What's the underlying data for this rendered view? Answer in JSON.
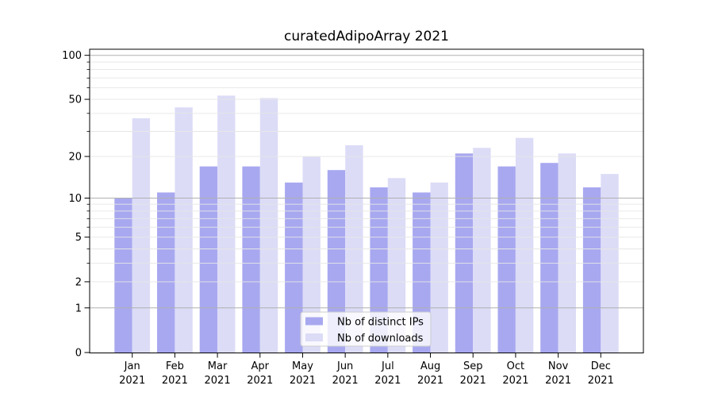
{
  "figure": {
    "background": "#ffffff"
  },
  "chart_data": {
    "type": "bar",
    "title": "curatedAdipoArray 2021",
    "categories": [
      "Jan",
      "Feb",
      "Mar",
      "Apr",
      "May",
      "Jun",
      "Jul",
      "Aug",
      "Sep",
      "Oct",
      "Nov",
      "Dec"
    ],
    "category_year": "2021",
    "series": [
      {
        "name": "Nb of distinct IPs",
        "color": "#a8a8f0",
        "values": [
          10,
          11,
          17,
          17,
          13,
          16,
          12,
          11,
          21,
          17,
          18,
          12
        ]
      },
      {
        "name": "Nb of downloads",
        "color": "#dcdcf7",
        "values": [
          37,
          44,
          53,
          51,
          20,
          24,
          14,
          13,
          23,
          27,
          21,
          15
        ]
      }
    ],
    "xlabel": "",
    "ylabel": "",
    "yscale": "log1p",
    "ylim": [
      0,
      110
    ],
    "yticks_major": [
      0,
      1,
      2,
      5,
      10,
      20,
      50,
      100
    ],
    "yticks_minor": [
      3,
      4,
      6,
      7,
      8,
      9,
      30,
      40,
      60,
      70,
      80,
      90
    ],
    "decade_gridlines": [
      1,
      10,
      100
    ],
    "grid": true,
    "grid_over_bars": true,
    "legend_position": "inside lower center",
    "colors": {
      "spine": "#000000",
      "grid_decade": "#b0b0b0",
      "grid_minor": "#e6e6e6",
      "legend_border": "#cccccc",
      "legend_background": "rgba(255,255,255,0.8)"
    }
  }
}
